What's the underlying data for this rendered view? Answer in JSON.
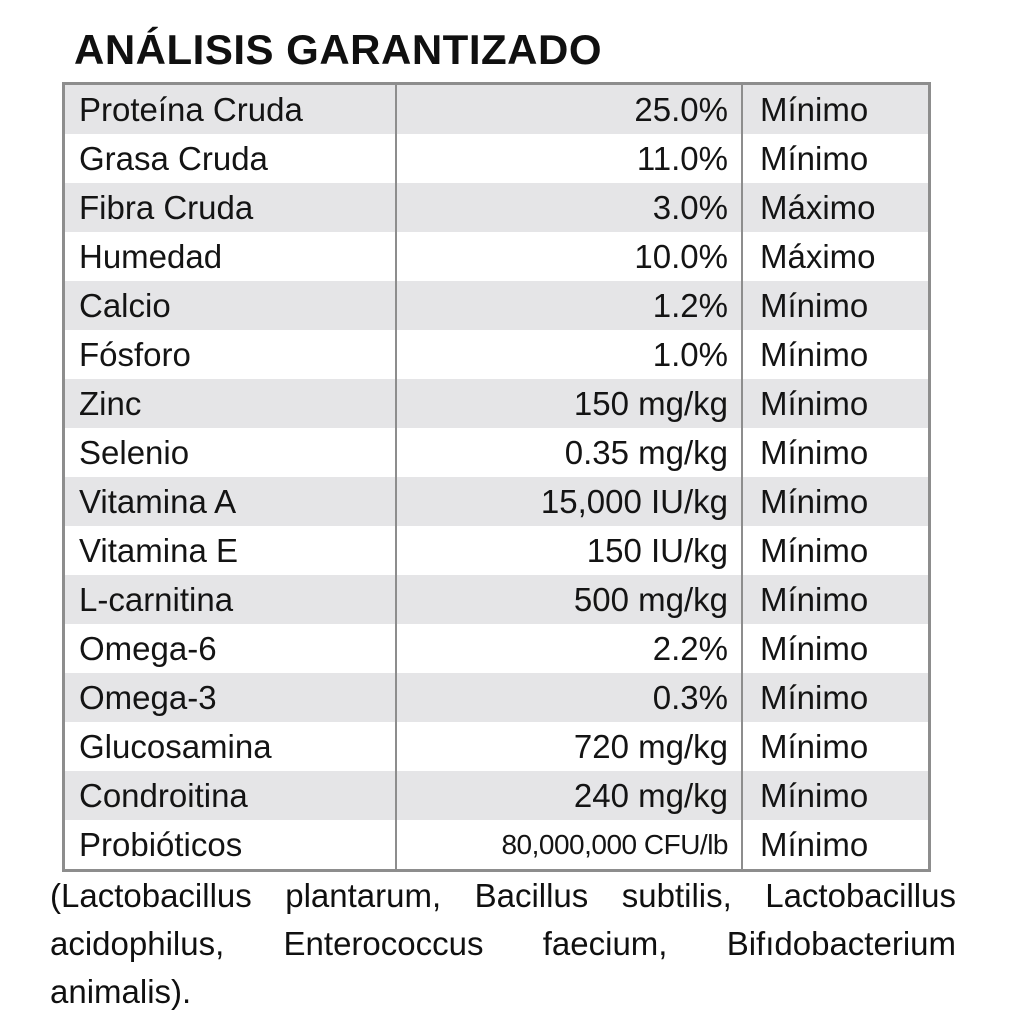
{
  "title": "ANÁLISIS GARANTIZADO",
  "table": {
    "rows": [
      {
        "nutrient": "Proteína Cruda",
        "value": "25.0%",
        "qualifier": "Mínimo",
        "condensed": false
      },
      {
        "nutrient": "Grasa Cruda",
        "value": "11.0%",
        "qualifier": "Mínimo",
        "condensed": false
      },
      {
        "nutrient": "Fibra Cruda",
        "value": "3.0%",
        "qualifier": "Máximo",
        "condensed": false
      },
      {
        "nutrient": "Humedad",
        "value": "10.0%",
        "qualifier": "Máximo",
        "condensed": false
      },
      {
        "nutrient": "Calcio",
        "value": "1.2%",
        "qualifier": "Mínimo",
        "condensed": false
      },
      {
        "nutrient": "Fósforo",
        "value": "1.0%",
        "qualifier": "Mínimo",
        "condensed": false
      },
      {
        "nutrient": "Zinc",
        "value": "150 mg/kg",
        "qualifier": "Mínimo",
        "condensed": false
      },
      {
        "nutrient": "Selenio",
        "value": "0.35 mg/kg",
        "qualifier": "Mínimo",
        "condensed": false
      },
      {
        "nutrient": "Vitamina A",
        "value": "15,000 IU/kg",
        "qualifier": "Mínimo",
        "condensed": false
      },
      {
        "nutrient": "Vitamina E",
        "value": "150 IU/kg",
        "qualifier": "Mínimo",
        "condensed": false
      },
      {
        "nutrient": "L-carnitina",
        "value": "500 mg/kg",
        "qualifier": "Mínimo",
        "condensed": false
      },
      {
        "nutrient": "Omega-6",
        "value": "2.2%",
        "qualifier": "Mínimo",
        "condensed": false
      },
      {
        "nutrient": "Omega-3",
        "value": "0.3%",
        "qualifier": "Mínimo",
        "condensed": false
      },
      {
        "nutrient": "Glucosamina",
        "value": "720 mg/kg",
        "qualifier": "Mínimo",
        "condensed": false
      },
      {
        "nutrient": "Condroitina",
        "value": "240 mg/kg",
        "qualifier": "Mínimo",
        "condensed": false
      },
      {
        "nutrient": "Probióticos",
        "value": "80,000,000 CFU/lb",
        "qualifier": "Mínimo",
        "condensed": true
      }
    ]
  },
  "footnote": {
    "lines": [
      "(Lactobacillus plantarum, Bacillus subtilis, Lactobacillus",
      "acidophilus, Enterococcus faecium, Bifıdobacterium",
      "animalis)."
    ]
  },
  "colors": {
    "stripe": "#e5e5e7",
    "border": "#8d8d8d",
    "text": "#101010"
  }
}
